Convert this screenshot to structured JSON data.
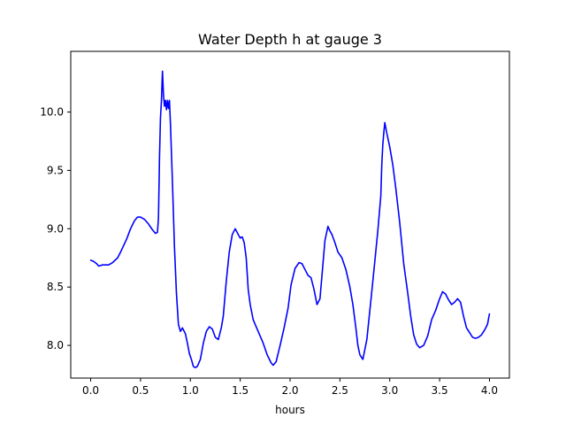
{
  "chart_data": {
    "type": "line",
    "title": "Water Depth h at gauge 3",
    "xlabel": "hours",
    "ylabel": "",
    "xlim": [
      -0.2,
      4.2
    ],
    "ylim": [
      7.72,
      10.52
    ],
    "xticks": [
      0.0,
      0.5,
      1.0,
      1.5,
      2.0,
      2.5,
      3.0,
      3.5,
      4.0
    ],
    "xtick_labels": [
      "0.0",
      "0.5",
      "1.0",
      "1.5",
      "2.0",
      "2.5",
      "3.0",
      "3.5",
      "4.0"
    ],
    "yticks": [
      8.0,
      8.5,
      9.0,
      9.5,
      10.0
    ],
    "ytick_labels": [
      "8.0",
      "8.5",
      "9.0",
      "9.5",
      "10.0"
    ],
    "grid": false,
    "legend": "none",
    "series": [
      {
        "color": "#0000ff",
        "x": [
          0.0,
          0.03,
          0.06,
          0.08,
          0.12,
          0.18,
          0.22,
          0.27,
          0.3,
          0.36,
          0.4,
          0.44,
          0.47,
          0.5,
          0.54,
          0.58,
          0.62,
          0.65,
          0.67,
          0.68,
          0.69,
          0.7,
          0.71,
          0.72,
          0.73,
          0.74,
          0.75,
          0.76,
          0.77,
          0.78,
          0.79,
          0.8,
          0.82,
          0.84,
          0.86,
          0.88,
          0.9,
          0.92,
          0.95,
          0.97,
          0.99,
          1.01,
          1.03,
          1.05,
          1.07,
          1.1,
          1.13,
          1.16,
          1.19,
          1.22,
          1.25,
          1.28,
          1.31,
          1.33,
          1.36,
          1.39,
          1.42,
          1.45,
          1.48,
          1.5,
          1.52,
          1.54,
          1.56,
          1.58,
          1.6,
          1.63,
          1.66,
          1.7,
          1.73,
          1.77,
          1.81,
          1.83,
          1.86,
          1.9,
          1.94,
          1.98,
          2.01,
          2.05,
          2.09,
          2.12,
          2.15,
          2.18,
          2.21,
          2.24,
          2.27,
          2.3,
          2.33,
          2.35,
          2.38,
          2.4,
          2.42,
          2.45,
          2.48,
          2.52,
          2.56,
          2.6,
          2.63,
          2.66,
          2.68,
          2.7,
          2.73,
          2.77,
          2.81,
          2.85,
          2.88,
          2.91,
          2.92,
          2.93,
          2.94,
          2.95,
          2.97,
          3.0,
          3.03,
          3.06,
          3.1,
          3.14,
          3.18,
          3.21,
          3.24,
          3.27,
          3.3,
          3.34,
          3.38,
          3.42,
          3.46,
          3.5,
          3.53,
          3.56,
          3.59,
          3.62,
          3.65,
          3.68,
          3.71,
          3.74,
          3.77,
          3.8,
          3.83,
          3.86,
          3.89,
          3.92,
          3.95,
          3.98,
          4.0
        ],
        "y": [
          8.73,
          8.72,
          8.7,
          8.68,
          8.69,
          8.69,
          8.71,
          8.75,
          8.8,
          8.91,
          9.0,
          9.07,
          9.1,
          9.1,
          9.08,
          9.04,
          8.99,
          8.96,
          8.97,
          9.1,
          9.6,
          9.95,
          10.1,
          10.35,
          10.15,
          10.05,
          10.1,
          10.02,
          10.1,
          10.03,
          10.1,
          9.9,
          9.4,
          8.85,
          8.45,
          8.18,
          8.12,
          8.15,
          8.1,
          8.02,
          7.93,
          7.88,
          7.82,
          7.81,
          7.82,
          7.88,
          8.02,
          8.12,
          8.16,
          8.14,
          8.07,
          8.05,
          8.15,
          8.25,
          8.55,
          8.8,
          8.95,
          9.0,
          8.95,
          8.92,
          8.93,
          8.88,
          8.75,
          8.48,
          8.35,
          8.22,
          8.16,
          8.08,
          8.02,
          7.92,
          7.85,
          7.83,
          7.86,
          8.0,
          8.15,
          8.32,
          8.52,
          8.66,
          8.71,
          8.7,
          8.65,
          8.6,
          8.58,
          8.48,
          8.35,
          8.4,
          8.7,
          8.9,
          9.02,
          8.98,
          8.95,
          8.88,
          8.8,
          8.75,
          8.65,
          8.5,
          8.35,
          8.15,
          8.0,
          7.92,
          7.88,
          8.05,
          8.38,
          8.72,
          8.98,
          9.28,
          9.55,
          9.72,
          9.82,
          9.91,
          9.82,
          9.7,
          9.55,
          9.35,
          9.05,
          8.7,
          8.45,
          8.25,
          8.09,
          8.01,
          7.98,
          8.0,
          8.08,
          8.22,
          8.3,
          8.4,
          8.46,
          8.44,
          8.39,
          8.35,
          8.37,
          8.4,
          8.37,
          8.25,
          8.15,
          8.11,
          8.07,
          8.06,
          8.07,
          8.09,
          8.13,
          8.18,
          8.27
        ]
      }
    ]
  }
}
